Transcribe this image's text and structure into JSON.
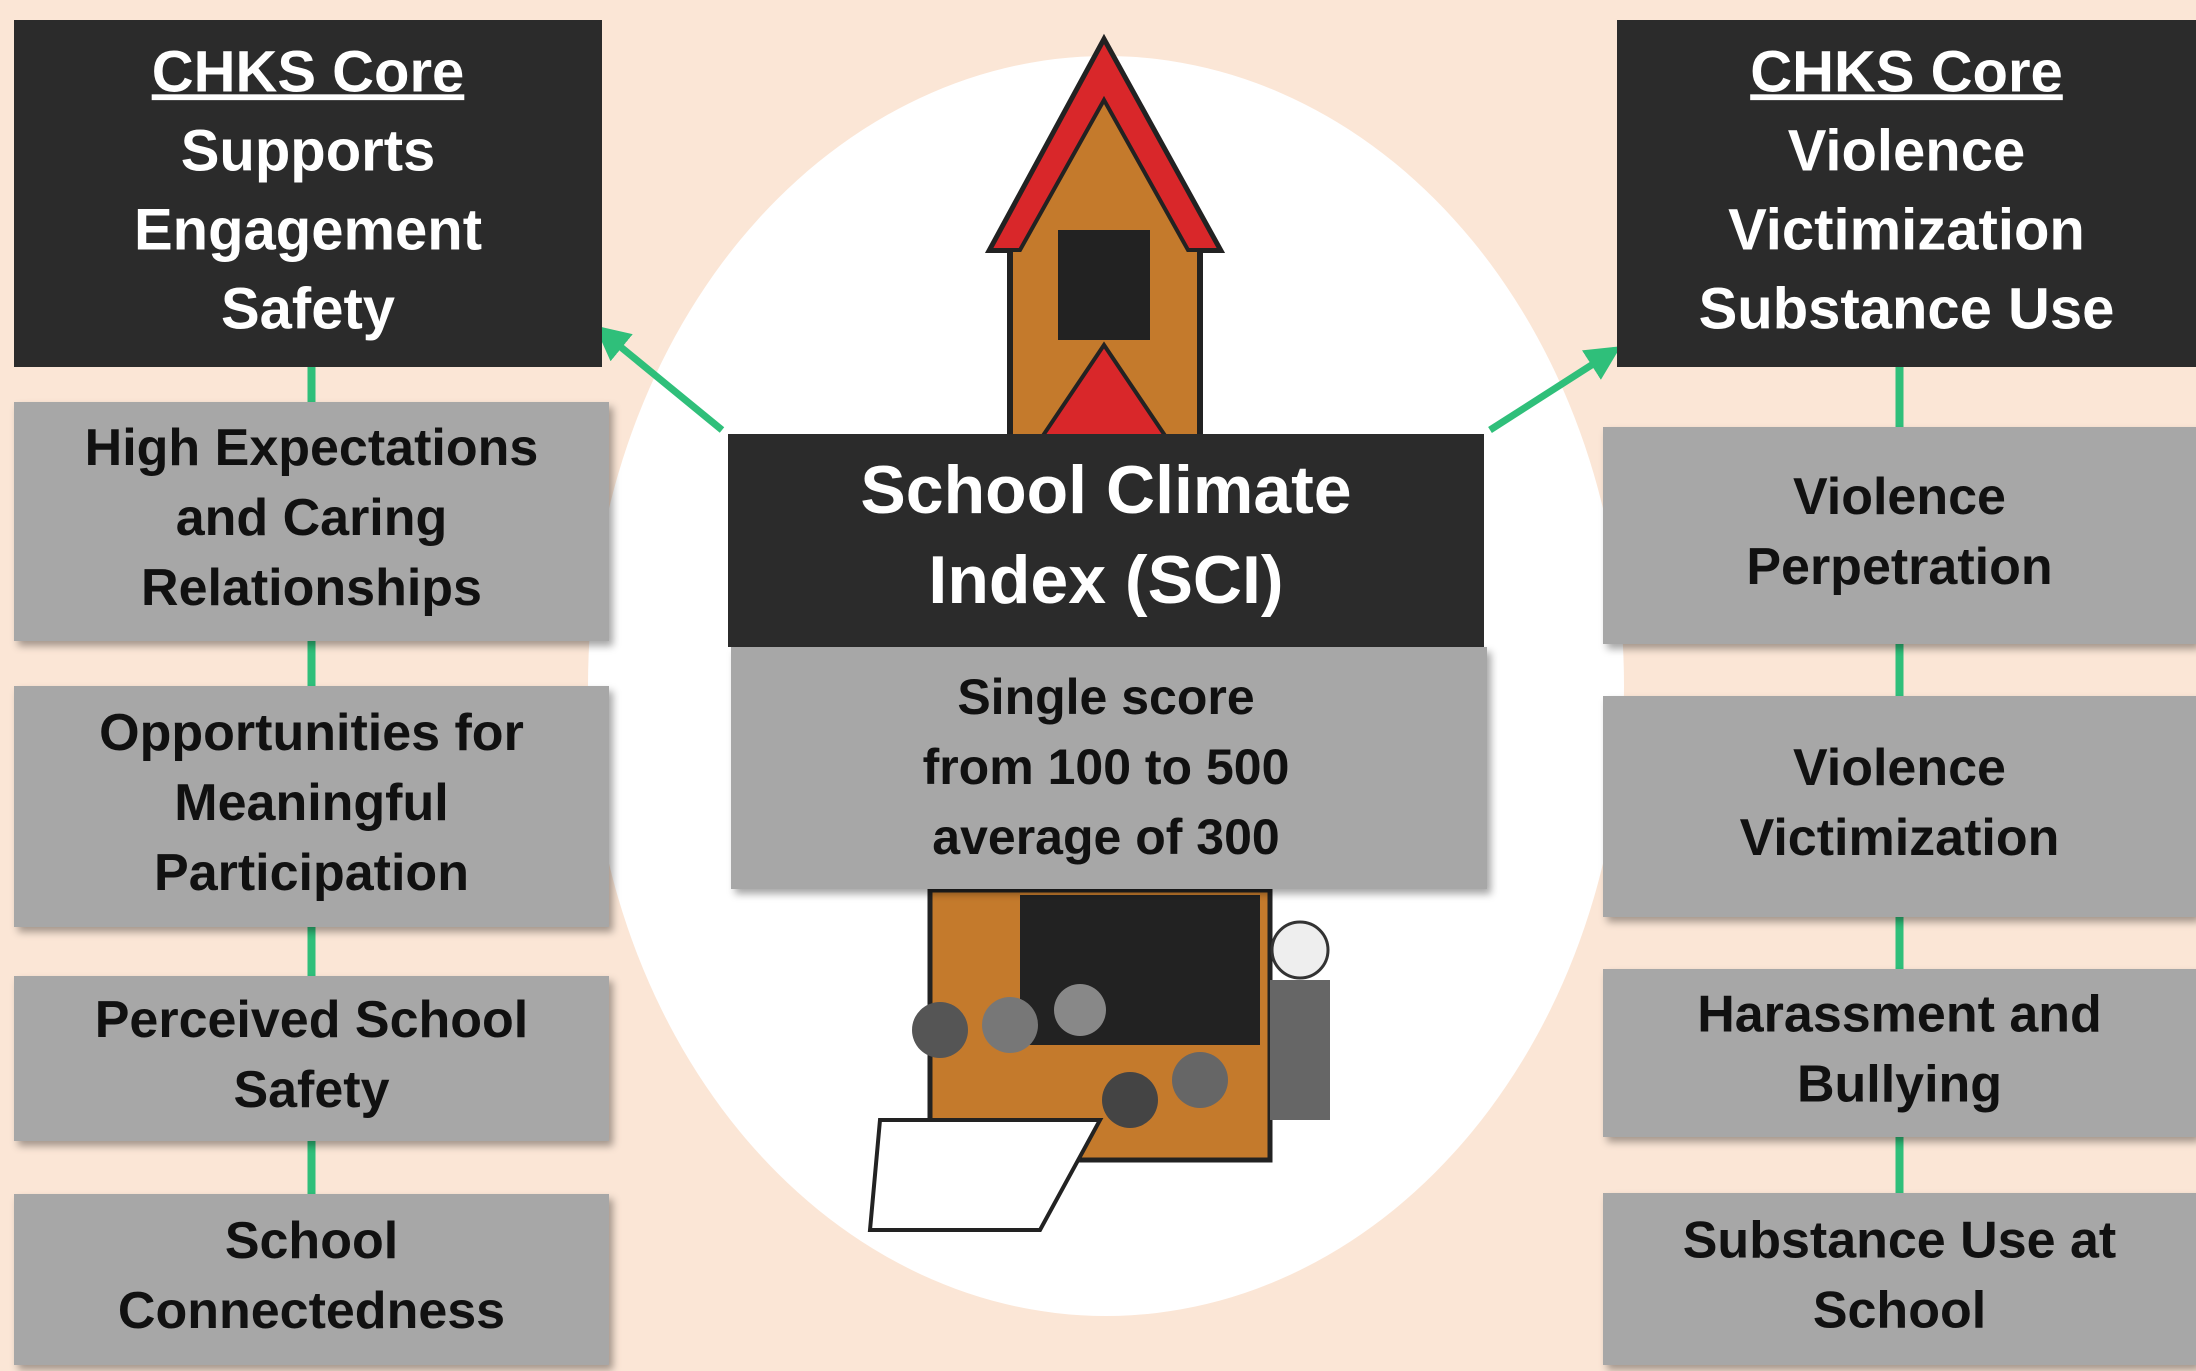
{
  "left": {
    "header": {
      "title": "CHKS Core",
      "lines": [
        "Supports",
        "Engagement",
        "Safety"
      ]
    },
    "items": [
      [
        "High Expectations",
        "and Caring",
        "Relationships"
      ],
      [
        "Opportunities for",
        "Meaningful",
        "Participation"
      ],
      [
        "Perceived School",
        "Safety"
      ],
      [
        "School",
        "Connectedness"
      ]
    ]
  },
  "center": {
    "title": [
      "School Climate",
      "Index (SCI)"
    ],
    "description": [
      "Single score",
      "from 100 to 500",
      "average of 300"
    ]
  },
  "right": {
    "header": {
      "title": "CHKS Core",
      "lines": [
        "Violence",
        "Victimization",
        "Substance Use"
      ]
    },
    "items": [
      [
        "Violence",
        "Perpetration"
      ],
      [
        "Violence",
        "Victimization"
      ],
      [
        "Harassment and",
        "Bullying"
      ],
      [
        "Substance Use at",
        "School"
      ]
    ]
  }
}
